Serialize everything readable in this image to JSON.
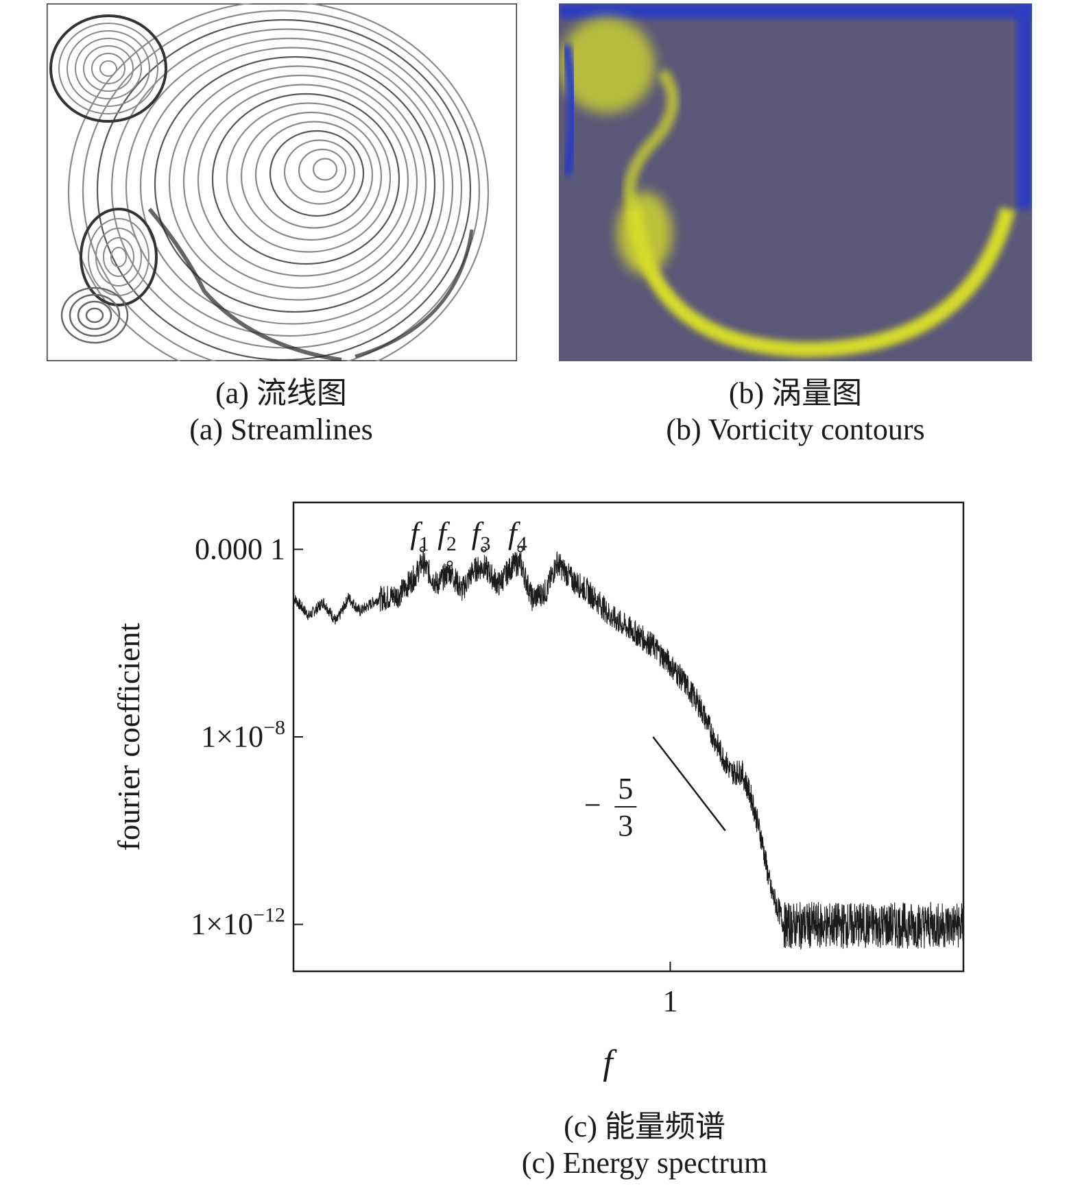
{
  "panels": {
    "a": {
      "caption_zh": "(a) 流线图",
      "caption_en": "(a) Streamlines"
    },
    "b": {
      "caption_zh": "(b) 涡量图",
      "caption_en": "(b) Vorticity contours"
    },
    "c": {
      "caption_zh": "(c) 能量频谱",
      "caption_en": "(c) Energy spectrum"
    }
  },
  "colors": {
    "vorticity_background": "#5b5878",
    "vorticity_low": "#2a3ec0",
    "vorticity_high": "#d6dc2a",
    "spectrum_line": "#1a1a1a"
  },
  "chart_data": {
    "type": "line",
    "xscale": "log",
    "yscale": "log",
    "xlabel": "f",
    "ylabel": "fourier coefficient",
    "xlim": [
      0.1,
      6
    ],
    "ylim": [
      1e-13,
      0.001
    ],
    "xticks": [
      {
        "value": 1,
        "label": "1"
      }
    ],
    "yticks": [
      {
        "value": 0.0001,
        "label": "0.000 1"
      },
      {
        "value": 1e-08,
        "label": "1×10",
        "exp": "−8"
      },
      {
        "value": 1e-12,
        "label": "1×10",
        "exp": "−12"
      }
    ],
    "grid": false,
    "annotations": [
      {
        "label": "f",
        "sub": "1",
        "x": 0.22,
        "y": 0.0001
      },
      {
        "label": "f",
        "sub": "2",
        "x": 0.26,
        "y": 5e-05
      },
      {
        "label": "f",
        "sub": "3",
        "x": 0.32,
        "y": 0.0001
      },
      {
        "label": "f",
        "sub": "4",
        "x": 0.4,
        "y": 0.0001
      }
    ],
    "slope_label": {
      "sign": "−",
      "numerator": "5",
      "denominator": "3"
    },
    "slope_line": {
      "x": [
        0.9,
        1.4
      ],
      "y": [
        1e-08,
        1e-10
      ]
    },
    "series": [
      {
        "x": [
          0.1,
          0.11,
          0.12,
          0.13,
          0.14,
          0.15,
          0.17,
          0.19,
          0.21,
          0.22,
          0.24,
          0.26,
          0.28,
          0.3,
          0.32,
          0.35,
          0.38,
          0.4,
          0.43,
          0.47,
          0.5,
          0.55,
          0.6,
          0.65,
          0.7,
          0.8,
          0.9,
          1.0,
          1.1,
          1.2,
          1.35,
          1.45,
          1.55,
          1.65,
          1.75,
          1.85,
          2.0,
          2.3,
          2.7,
          3.2,
          4.0,
          5.0,
          6.0
        ],
        "y": [
          1e-05,
          4e-06,
          8e-06,
          3e-06,
          1e-05,
          5e-06,
          1e-05,
          1.2e-05,
          3e-05,
          6e-05,
          2e-05,
          4e-05,
          1.5e-05,
          4e-05,
          5e-05,
          2e-05,
          5e-05,
          6e-05,
          1e-05,
          1.5e-05,
          6e-05,
          2.5e-05,
          1.5e-05,
          8e-06,
          4e-06,
          2e-06,
          1e-06,
          4e-07,
          1.5e-07,
          5e-08,
          6e-09,
          2e-09,
          2e-09,
          5e-10,
          7e-11,
          6e-12,
          1.2e-12,
          1.2e-12,
          1.2e-12,
          1.2e-12,
          1.2e-12,
          1.2e-12,
          1.2e-12
        ]
      }
    ]
  }
}
